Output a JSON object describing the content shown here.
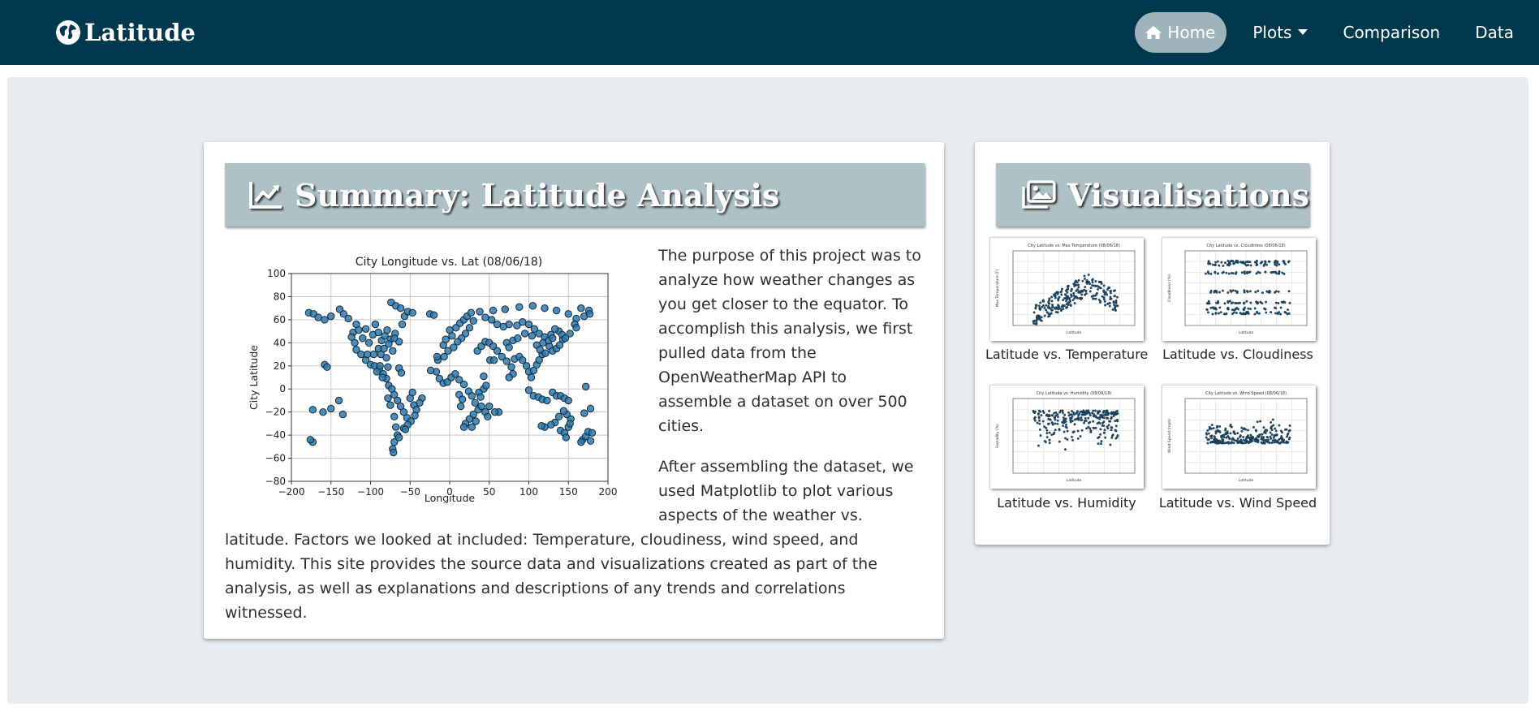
{
  "navbar": {
    "brand": "Latitude",
    "brand_icon": "globe-icon",
    "items": [
      {
        "label": "Home",
        "icon": "home-icon",
        "active": true
      },
      {
        "label": "Plots",
        "dropdown": true
      },
      {
        "label": "Comparison"
      },
      {
        "label": "Data"
      }
    ]
  },
  "summary": {
    "title": "Summary: Latitude Analysis",
    "icon": "line-chart-icon",
    "paragraphs": [
      "The purpose of this project was to analyze how weather changes as you get closer to the equator. To accomplish this analysis, we first pulled data from the OpenWeatherMap API to assemble a dataset on over 500 cities.",
      "After assembling the dataset, we used Matplotlib to plot various aspects of the weather vs. latitude. Factors we looked at included: Temperature, cloudiness, wind speed, and humidity. This site provides the source data and visualizations created as part of the analysis, as well as explanations and descriptions of any trends and correlations witnessed."
    ]
  },
  "visualisations": {
    "title": "Visualisations",
    "icon": "images-icon",
    "thumbs": [
      {
        "caption": "Latitude vs. Temperature",
        "plot_title": "City Latitude vs. Max Temperature (08/06/18)",
        "xlabel": "Latitude",
        "ylabel": "Max Temperature (F)"
      },
      {
        "caption": "Latitude vs. Cloudiness",
        "plot_title": "City Latitude vs. Cloudiness (08/06/18)",
        "xlabel": "Latitude",
        "ylabel": "Cloudiness (%)"
      },
      {
        "caption": "Latitude vs. Humidity",
        "plot_title": "City Latitude vs. Humidity (08/06/18)",
        "xlabel": "Latitude",
        "ylabel": "Humidity (%)"
      },
      {
        "caption": "Latitude vs. Wind Speed",
        "plot_title": "City Latitude vs. Wind Speed (08/06/18)",
        "xlabel": "Latitude",
        "ylabel": "Wind Speed (mph)"
      }
    ]
  },
  "colors": {
    "navbar": "#00394d",
    "header": "#aec1c7",
    "point_fill": "#2f78ad",
    "point_edge": "#0e2a3a"
  },
  "chart_data": {
    "type": "scatter",
    "title": "City Longitude vs. Lat (08/06/18)",
    "xlabel": "Longitude",
    "ylabel": "City Latitude",
    "xlim": [
      -200,
      200
    ],
    "ylim": [
      -80,
      100
    ],
    "xticks": [
      -200,
      -150,
      -100,
      -50,
      0,
      50,
      100,
      150,
      200
    ],
    "yticks": [
      -80,
      -60,
      -40,
      -20,
      0,
      20,
      40,
      60,
      80,
      100
    ],
    "grid": true,
    "points": [
      [
        -178,
        66
      ],
      [
        -172,
        65
      ],
      [
        -166,
        62
      ],
      [
        -158,
        60
      ],
      [
        -150,
        63
      ],
      [
        -139,
        69
      ],
      [
        -134,
        65
      ],
      [
        -128,
        61
      ],
      [
        -122,
        49
      ],
      [
        -118,
        56
      ],
      [
        -115,
        51
      ],
      [
        -110,
        44
      ],
      [
        -106,
        52
      ],
      [
        -102,
        40
      ],
      [
        -97,
        47
      ],
      [
        -94,
        56
      ],
      [
        -90,
        49
      ],
      [
        -86,
        42
      ],
      [
        -82,
        46
      ],
      [
        -79,
        51
      ],
      [
        -75,
        43
      ],
      [
        -72,
        33
      ],
      [
        -69,
        48
      ],
      [
        -64,
        41
      ],
      [
        -60,
        56
      ],
      [
        -57,
        63
      ],
      [
        -53,
        67
      ],
      [
        -47,
        66
      ],
      [
        -74,
        75
      ],
      [
        -68,
        72
      ],
      [
        -62,
        70
      ],
      [
        -118,
        34
      ],
      [
        -112,
        30
      ],
      [
        -106,
        25
      ],
      [
        -100,
        21
      ],
      [
        -95,
        20
      ],
      [
        -89,
        17
      ],
      [
        -84,
        13
      ],
      [
        -80,
        9
      ],
      [
        -77,
        3
      ],
      [
        -73,
        0
      ],
      [
        -70,
        -5
      ],
      [
        -66,
        -10
      ],
      [
        -62,
        -15
      ],
      [
        -58,
        -20
      ],
      [
        -54,
        -25
      ],
      [
        -50,
        -8
      ],
      [
        -47,
        -3
      ],
      [
        -45,
        -14
      ],
      [
        -42,
        -18
      ],
      [
        -70,
        -24
      ],
      [
        -68,
        -33
      ],
      [
        -66,
        -40
      ],
      [
        -70,
        -46
      ],
      [
        -72,
        -52
      ],
      [
        -71,
        -55
      ],
      [
        -64,
        -42
      ],
      [
        -58,
        -34
      ],
      [
        -75,
        -14
      ],
      [
        -78,
        -8
      ],
      [
        -158,
        21
      ],
      [
        -155,
        19
      ],
      [
        -160,
        -20
      ],
      [
        -150,
        -17
      ],
      [
        -140,
        -10
      ],
      [
        -135,
        -22
      ],
      [
        -173,
        -18
      ],
      [
        -8,
        38
      ],
      [
        -5,
        43
      ],
      [
        0,
        51
      ],
      [
        3,
        46
      ],
      [
        8,
        53
      ],
      [
        13,
        57
      ],
      [
        18,
        60
      ],
      [
        22,
        63
      ],
      [
        27,
        66
      ],
      [
        30,
        59
      ],
      [
        25,
        53
      ],
      [
        20,
        48
      ],
      [
        15,
        44
      ],
      [
        10,
        41
      ],
      [
        5,
        36
      ],
      [
        -2,
        33
      ],
      [
        -7,
        28
      ],
      [
        -15,
        25
      ],
      [
        -17,
        15
      ],
      [
        -13,
        9
      ],
      [
        -8,
        5
      ],
      [
        -3,
        6
      ],
      [
        2,
        10
      ],
      [
        7,
        13
      ],
      [
        12,
        8
      ],
      [
        18,
        4
      ],
      [
        24,
        -2
      ],
      [
        28,
        -6
      ],
      [
        32,
        -12
      ],
      [
        36,
        -18
      ],
      [
        30,
        -22
      ],
      [
        25,
        -26
      ],
      [
        20,
        -30
      ],
      [
        18,
        -33
      ],
      [
        28,
        -33
      ],
      [
        33,
        -28
      ],
      [
        40,
        -15
      ],
      [
        45,
        -20
      ],
      [
        48,
        -24
      ],
      [
        35,
        33
      ],
      [
        40,
        37
      ],
      [
        45,
        41
      ],
      [
        50,
        40
      ],
      [
        55,
        37
      ],
      [
        60,
        33
      ],
      [
        66,
        28
      ],
      [
        72,
        24
      ],
      [
        78,
        19
      ],
      [
        80,
        13
      ],
      [
        75,
        10
      ],
      [
        82,
        26
      ],
      [
        88,
        28
      ],
      [
        92,
        25
      ],
      [
        97,
        20
      ],
      [
        100,
        15
      ],
      [
        103,
        10
      ],
      [
        106,
        16
      ],
      [
        110,
        21
      ],
      [
        113,
        25
      ],
      [
        117,
        30
      ],
      [
        121,
        31
      ],
      [
        126,
        37
      ],
      [
        130,
        33
      ],
      [
        135,
        35
      ],
      [
        139,
        38
      ],
      [
        143,
        43
      ],
      [
        138,
        50
      ],
      [
        133,
        52
      ],
      [
        128,
        47
      ],
      [
        120,
        45
      ],
      [
        113,
        48
      ],
      [
        107,
        52
      ],
      [
        100,
        56
      ],
      [
        92,
        58
      ],
      [
        85,
        55
      ],
      [
        75,
        56
      ],
      [
        68,
        54
      ],
      [
        60,
        56
      ],
      [
        53,
        60
      ],
      [
        45,
        62
      ],
      [
        38,
        67
      ],
      [
        55,
        68
      ],
      [
        70,
        69
      ],
      [
        88,
        71
      ],
      [
        105,
        72
      ],
      [
        120,
        70
      ],
      [
        135,
        68
      ],
      [
        150,
        65
      ],
      [
        160,
        61
      ],
      [
        170,
        63
      ],
      [
        176,
        68
      ],
      [
        158,
        56
      ],
      [
        166,
        70
      ],
      [
        100,
        -1
      ],
      [
        106,
        -6
      ],
      [
        112,
        -7
      ],
      [
        117,
        -9
      ],
      [
        123,
        -10
      ],
      [
        130,
        -3
      ],
      [
        135,
        -6
      ],
      [
        140,
        -6
      ],
      [
        145,
        -8
      ],
      [
        150,
        -10
      ],
      [
        153,
        -26
      ],
      [
        148,
        -22
      ],
      [
        144,
        -19
      ],
      [
        138,
        -24
      ],
      [
        133,
        -29
      ],
      [
        128,
        -31
      ],
      [
        120,
        -33
      ],
      [
        116,
        -32
      ],
      [
        140,
        -36
      ],
      [
        145,
        -38
      ],
      [
        150,
        -33
      ],
      [
        152,
        -30
      ],
      [
        147,
        -42
      ],
      [
        168,
        -44
      ],
      [
        172,
        -41
      ],
      [
        175,
        -37
      ],
      [
        178,
        -45
      ],
      [
        166,
        -46
      ],
      [
        170,
        -21
      ],
      [
        178,
        -17
      ],
      [
        172,
        2
      ],
      [
        -25,
        65
      ],
      [
        -20,
        64
      ],
      [
        -16,
        28
      ],
      [
        -24,
        16
      ],
      [
        -35,
        -8
      ],
      [
        -38,
        -12
      ],
      [
        62,
        -20
      ],
      [
        57,
        -20
      ],
      [
        50,
        -15
      ],
      [
        -120,
        40
      ],
      [
        -124,
        45
      ],
      [
        -87,
        30
      ],
      [
        -96,
        30
      ],
      [
        -104,
        30
      ],
      [
        -90,
        35
      ],
      [
        -80,
        27
      ],
      [
        -83,
        35
      ],
      [
        -77,
        39
      ],
      [
        -70,
        44
      ],
      [
        -78,
        19
      ],
      [
        -88,
        20
      ],
      [
        -92,
        15
      ],
      [
        -85,
        10
      ],
      [
        -64,
        18
      ],
      [
        -61,
        14
      ],
      [
        -44,
        -23
      ],
      [
        -49,
        -28
      ],
      [
        -53,
        -31
      ],
      [
        -56,
        -35
      ],
      [
        12,
        -5
      ],
      [
        16,
        -9
      ],
      [
        14,
        -15
      ],
      [
        37,
        -3
      ],
      [
        39,
        -7
      ],
      [
        43,
        0
      ],
      [
        46,
        3
      ],
      [
        43,
        11
      ],
      [
        51,
        25
      ],
      [
        56,
        25
      ],
      [
        72,
        40
      ],
      [
        75,
        36
      ],
      [
        80,
        42
      ],
      [
        86,
        44
      ],
      [
        95,
        48
      ],
      [
        104,
        46
      ],
      [
        110,
        38
      ],
      [
        114,
        34
      ],
      [
        118,
        40
      ],
      [
        125,
        42
      ],
      [
        130,
        44
      ],
      [
        142,
        47
      ],
      [
        146,
        44
      ],
      [
        152,
        48
      ],
      [
        160,
        53
      ],
      [
        177,
        65
      ],
      [
        180,
        -38
      ],
      [
        -173,
        -46
      ],
      [
        -176,
        -44
      ]
    ]
  }
}
